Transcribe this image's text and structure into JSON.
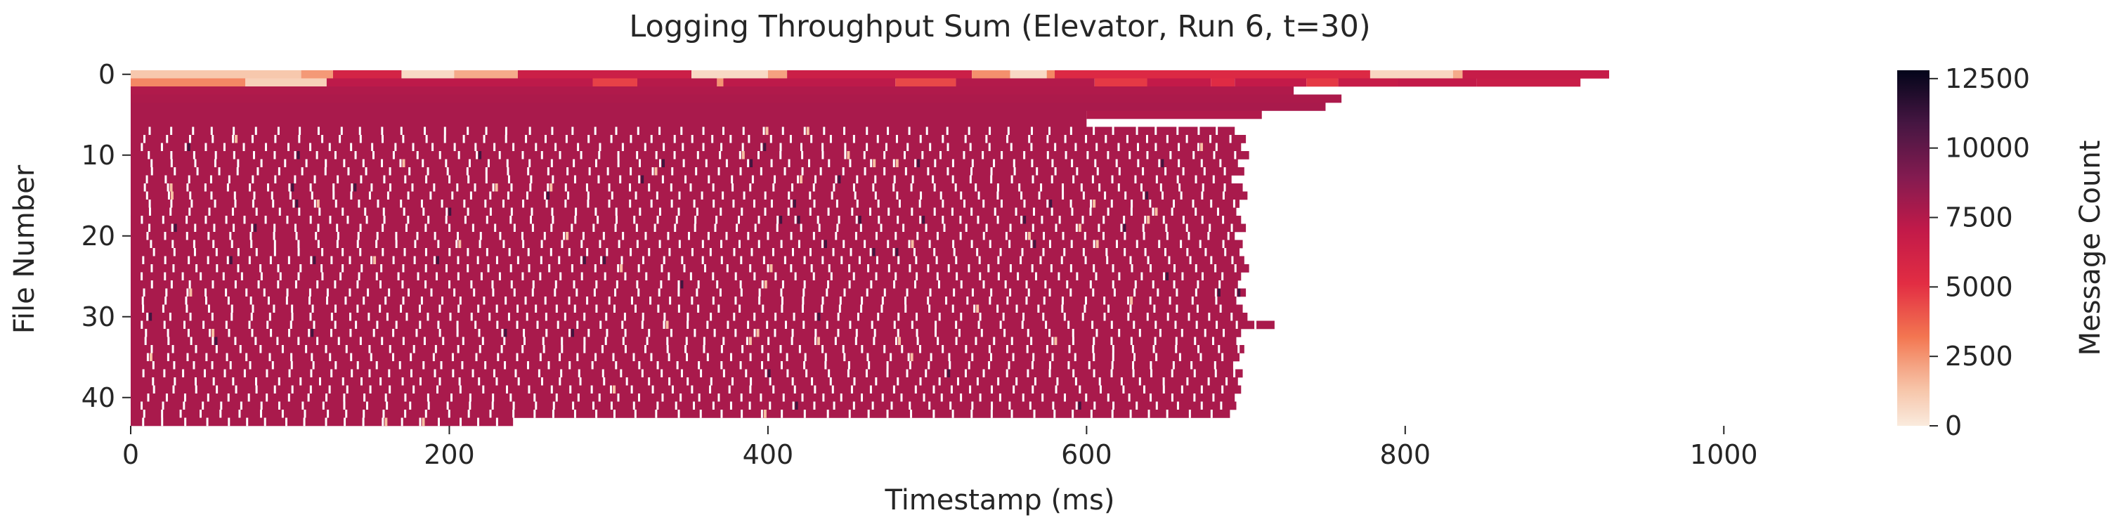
{
  "chart_data": {
    "type": "heatmap",
    "title": "Logging Throughput Sum (Elevator, Run 6, t=30)",
    "xlabel": "Timestamp (ms)",
    "ylabel": "File Number",
    "xlim": [
      0,
      1100
    ],
    "ylim": [
      0,
      44
    ],
    "x_ticks": [
      0,
      200,
      400,
      600,
      800,
      1000
    ],
    "y_ticks": [
      0,
      10,
      20,
      30,
      40
    ],
    "colorbar": {
      "label": "Message Count",
      "min": 0,
      "max": 12800,
      "ticks": [
        0,
        2500,
        5000,
        7500,
        10000,
        12500
      ],
      "colormap": "rocket_r"
    },
    "rows": [
      {
        "file": 0,
        "segments": [
          [
            0,
            107,
            1200
          ],
          [
            107,
            127,
            2400
          ],
          [
            127,
            170,
            6000
          ],
          [
            170,
            203,
            600
          ],
          [
            203,
            243,
            2000
          ],
          [
            243,
            352,
            6500
          ],
          [
            352,
            400,
            600
          ],
          [
            400,
            412,
            2200
          ],
          [
            412,
            528,
            6500
          ],
          [
            528,
            552,
            2600
          ],
          [
            552,
            575,
            600
          ],
          [
            575,
            580,
            2800
          ],
          [
            580,
            778,
            5500
          ],
          [
            778,
            830,
            700
          ],
          [
            830,
            836,
            2000
          ],
          [
            836,
            928,
            6800
          ]
        ]
      },
      {
        "file": 1,
        "segments": [
          [
            0,
            72,
            2800
          ],
          [
            72,
            123,
            900
          ],
          [
            123,
            290,
            7200
          ],
          [
            290,
            318,
            4600
          ],
          [
            318,
            368,
            7400
          ],
          [
            368,
            372,
            2500
          ],
          [
            372,
            480,
            7200
          ],
          [
            480,
            518,
            4400
          ],
          [
            518,
            605,
            7500
          ],
          [
            605,
            638,
            4800
          ],
          [
            638,
            678,
            7000
          ],
          [
            678,
            693,
            5300
          ],
          [
            693,
            738,
            7000
          ],
          [
            738,
            758,
            4800
          ],
          [
            758,
            795,
            6800
          ],
          [
            795,
            845,
            7000
          ],
          [
            845,
            910,
            6700
          ]
        ]
      },
      {
        "file": 2,
        "segments": [
          [
            0,
            730,
            7600
          ]
        ]
      },
      {
        "file": 3,
        "segments": [
          [
            0,
            760,
            7700
          ]
        ]
      },
      {
        "file": 4,
        "segments": [
          [
            0,
            750,
            7800
          ]
        ]
      },
      {
        "file": 5,
        "segments": [
          [
            0,
            600,
            7800
          ],
          [
            600,
            710,
            7600
          ]
        ]
      },
      {
        "file": 6,
        "segments": [
          [
            0,
            600,
            7800
          ]
        ]
      }
    ],
    "dense_rows": {
      "from_file": 7,
      "to_file": 43,
      "start_ms": 0,
      "typical_value": 7800,
      "gap_value": 0,
      "end_ms": [
        693,
        700,
        697,
        702,
        695,
        699,
        691,
        698,
        701,
        696,
        694,
        697,
        700,
        693,
        698,
        696,
        699,
        702,
        697,
        695,
        700,
        694,
        698,
        701,
        718,
        697,
        694,
        699,
        696,
        692,
        698,
        695,
        697,
        693,
        694,
        690,
        240
      ]
    }
  }
}
